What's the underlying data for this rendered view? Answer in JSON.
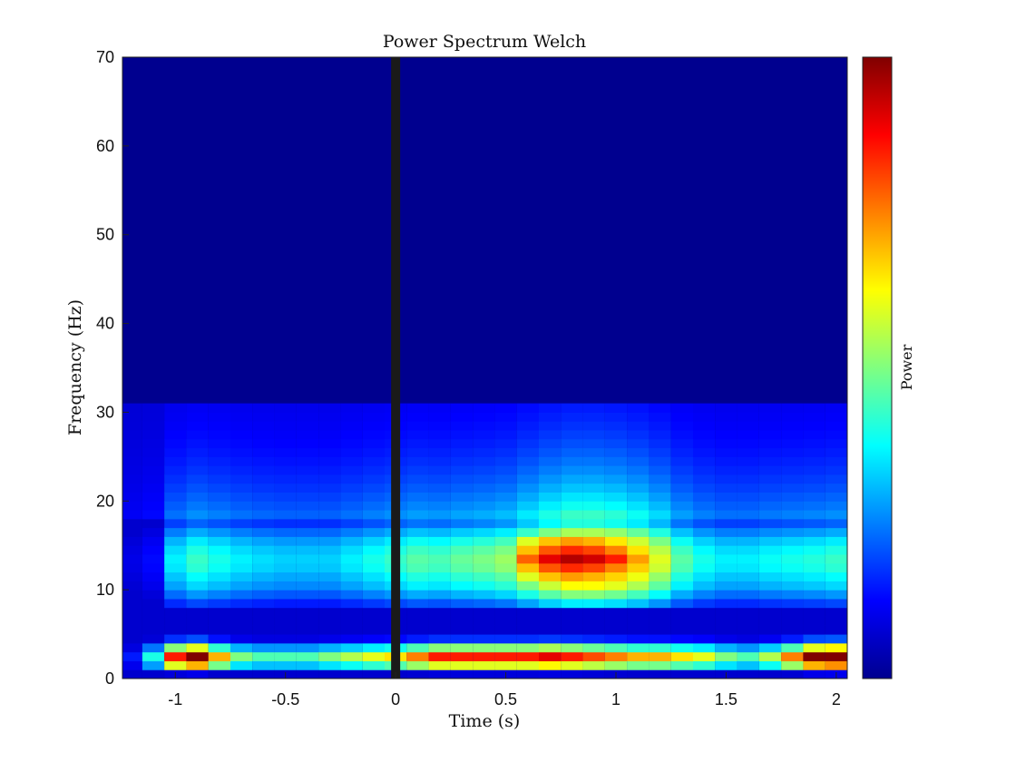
{
  "chart_data": {
    "type": "heatmap",
    "title": "Power Spectrum Welch",
    "xlabel": "Time (s)",
    "ylabel": "Frequency (Hz)",
    "colorbar_label": "Power",
    "colormap": "jet",
    "xlim": [
      -1.24,
      2.05
    ],
    "ylim": [
      0,
      70
    ],
    "xticks": [
      -1,
      -0.5,
      0,
      0.5,
      1,
      1.5,
      2
    ],
    "xtick_labels": [
      "-1",
      "-0.5",
      "0",
      "0.5",
      "1",
      "1.5",
      "2"
    ],
    "yticks": [
      0,
      10,
      20,
      30,
      40,
      50,
      60,
      70
    ],
    "ytick_labels": [
      "0",
      "10",
      "20",
      "30",
      "40",
      "50",
      "60",
      "70"
    ],
    "marker_line": {
      "x": 0,
      "color": "#1a1a1a"
    },
    "x_bins": [
      -1.2,
      -1.1,
      -1.0,
      -0.9,
      -0.8,
      -0.7,
      -0.6,
      -0.5,
      -0.4,
      -0.3,
      -0.2,
      -0.1,
      0.0,
      0.1,
      0.2,
      0.3,
      0.4,
      0.5,
      0.6,
      0.7,
      0.8,
      0.9,
      1.0,
      1.1,
      1.2,
      1.3,
      1.4,
      1.5,
      1.6,
      1.7,
      1.8,
      1.9,
      2.0
    ],
    "y_bins": [
      0,
      1,
      2,
      3,
      4,
      5,
      6,
      7,
      8,
      9,
      10,
      11,
      12,
      13,
      14,
      15,
      16,
      17,
      18,
      19,
      20,
      21,
      22,
      23,
      24,
      25,
      26,
      27,
      28,
      29,
      30
    ],
    "x_peaks": [
      {
        "t": 0.55,
        "v": 0.46
      },
      {
        "t": 0.65,
        "v": 0.78
      },
      {
        "t": 0.75,
        "v": 0.9
      },
      {
        "t": 0.8,
        "v": 0.95
      },
      {
        "t": 0.85,
        "v": 0.92
      },
      {
        "t": 0.95,
        "v": 0.85
      },
      {
        "t": 1.05,
        "v": 0.72
      },
      {
        "t": 1.15,
        "v": 0.38
      }
    ],
    "band_low_freq": [
      0.1,
      0.7,
      1.0,
      0.6,
      0.2
    ],
    "band_alpha_freq": [
      8,
      9,
      10,
      11,
      12,
      13,
      14,
      15,
      16,
      17
    ],
    "band_alpha_level": [
      0.3,
      0.42,
      0.52,
      0.58,
      0.64,
      0.66,
      0.62,
      0.55,
      0.45,
      0.34
    ],
    "time_alpha_gain": [
      0.15,
      0.2,
      0.55,
      0.65,
      0.6,
      0.55,
      0.52,
      0.5,
      0.5,
      0.5,
      0.55,
      0.6,
      0.65,
      0.7,
      0.68,
      0.72,
      0.75,
      0.8,
      0.95,
      1.1,
      1.2,
      1.2,
      1.15,
      1.05,
      0.9,
      0.7,
      0.6,
      0.55,
      0.55,
      0.58,
      0.6,
      0.62,
      0.65
    ],
    "time_low_gain": [
      0.15,
      0.4,
      0.85,
      1.0,
      0.7,
      0.5,
      0.45,
      0.45,
      0.45,
      0.5,
      0.55,
      0.6,
      0.65,
      0.75,
      0.85,
      0.85,
      0.85,
      0.85,
      0.85,
      0.9,
      0.85,
      0.8,
      0.75,
      0.7,
      0.7,
      0.65,
      0.6,
      0.5,
      0.45,
      0.55,
      0.75,
      1.0,
      1.05
    ],
    "decay_hz": 8
  }
}
